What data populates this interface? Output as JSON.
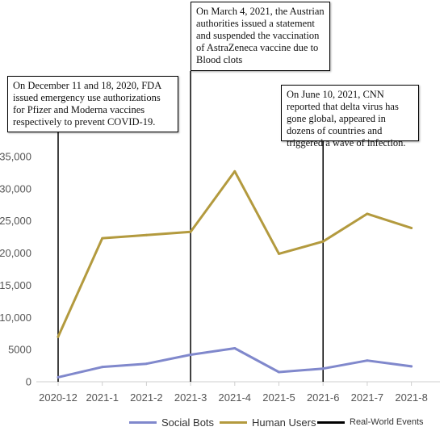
{
  "chart_data": {
    "type": "line",
    "categories": [
      "2020-12",
      "2021-1",
      "2021-2",
      "2021-3",
      "2021-4",
      "2021-5",
      "2021-6",
      "2021-7",
      "2021-8"
    ],
    "series": [
      {
        "name": "Social Bots",
        "color": "#8088cc",
        "values": [
          700,
          2300,
          2800,
          4200,
          5200,
          1500,
          2050,
          3300,
          2400
        ]
      },
      {
        "name": "Human Users",
        "color": "#b39a3e",
        "values": [
          7000,
          22300,
          22800,
          23300,
          32700,
          19900,
          21800,
          26100,
          23900
        ]
      }
    ],
    "ylim": [
      0,
      35000
    ],
    "yticks": [
      {
        "value": 0,
        "label": "0"
      },
      {
        "value": 5000,
        "label": "5000"
      },
      {
        "value": 10000,
        "label": "10,000"
      },
      {
        "value": 15000,
        "label": "15,000"
      },
      {
        "value": 20000,
        "label": "20,000"
      },
      {
        "value": 25000,
        "label": "25,000"
      },
      {
        "value": 30000,
        "label": "30,000"
      },
      {
        "value": 35000,
        "label": "35,000"
      }
    ],
    "grid": false,
    "legend_position": "bottom",
    "events": {
      "name": "Real-World Events",
      "color": "#000000",
      "items": [
        {
          "x": "2020-12",
          "text": "On December 11 and 18, 2020, FDA issued emergency use authorizations for Pfizer and Moderna vaccines respectively to prevent COVID-19."
        },
        {
          "x": "2021-3",
          "text": "On March 4, 2021, the Austrian authorities issued a statement and suspended the vaccination of AstraZeneca vaccine due to Blood clots"
        },
        {
          "x": "2021-6",
          "text": "On June 10, 2021, CNN reported that delta virus has gone global, appeared in dozens of countries and triggered a wave of infection."
        }
      ]
    }
  }
}
